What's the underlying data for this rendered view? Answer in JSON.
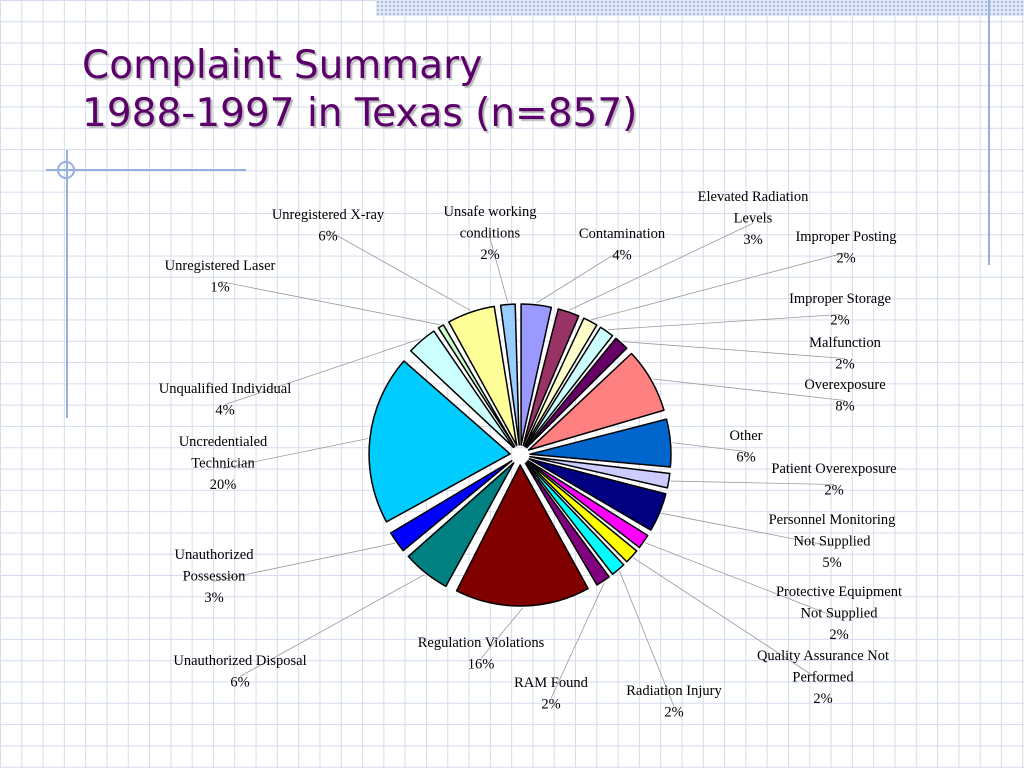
{
  "slide": {
    "title_line1": "Complaint Summary",
    "title_line2": "1988-1997 in Texas (n=857)"
  },
  "chart_data": {
    "type": "pie",
    "title": "",
    "start_angle_deg": -1,
    "slices": [
      {
        "label": [
          "Contamination"
        ],
        "value": 4,
        "color": "#9999ff"
      },
      {
        "label": [
          "Elevated Radiation",
          "Levels"
        ],
        "value": 3,
        "color": "#993366"
      },
      {
        "label": [
          "Improper Posting"
        ],
        "value": 2,
        "color": "#ffffcc"
      },
      {
        "label": [
          "Improper Storage"
        ],
        "value": 2,
        "color": "#ccffff"
      },
      {
        "label": [
          "Malfunction"
        ],
        "value": 2,
        "color": "#660066"
      },
      {
        "label": [
          "Overexposure"
        ],
        "value": 8,
        "color": "#ff8080"
      },
      {
        "label": [
          "Other"
        ],
        "value": 6,
        "color": "#0066cc"
      },
      {
        "label": [
          "Patient Overexposure"
        ],
        "value": 2,
        "color": "#ccccff"
      },
      {
        "label": [
          "Personnel Monitoring",
          "Not Supplied"
        ],
        "value": 5,
        "color": "#000080"
      },
      {
        "label": [
          "Protective Equipment",
          "Not Supplied"
        ],
        "value": 2,
        "color": "#ff00ff"
      },
      {
        "label": [
          "Quality Assurance Not",
          "Performed"
        ],
        "value": 2,
        "color": "#ffff00"
      },
      {
        "label": [
          "Radiation Injury"
        ],
        "value": 2,
        "color": "#00ffff"
      },
      {
        "label": [
          "RAM Found"
        ],
        "value": 2,
        "color": "#800080"
      },
      {
        "label": [
          "Regulation Violations"
        ],
        "value": 16,
        "color": "#800000"
      },
      {
        "label": [
          "Unauthorized Disposal"
        ],
        "value": 6,
        "color": "#008080"
      },
      {
        "label": [
          "Unauthorized",
          "Possession"
        ],
        "value": 3,
        "color": "#0000ff"
      },
      {
        "label": [
          "Uncredentialed",
          "Technician"
        ],
        "value": 20,
        "color": "#00ccff"
      },
      {
        "label": [
          "Unqualified Individual"
        ],
        "value": 4,
        "color": "#ccffff"
      },
      {
        "label": [
          "Unregistered Laser"
        ],
        "value": 1,
        "color": "#ccffcc"
      },
      {
        "label": [
          "Unregistered X-ray"
        ],
        "value": 6,
        "color": "#ffff99"
      },
      {
        "label": [
          "Unsafe working",
          "conditions"
        ],
        "value": 2,
        "color": "#99ccff"
      }
    ]
  }
}
